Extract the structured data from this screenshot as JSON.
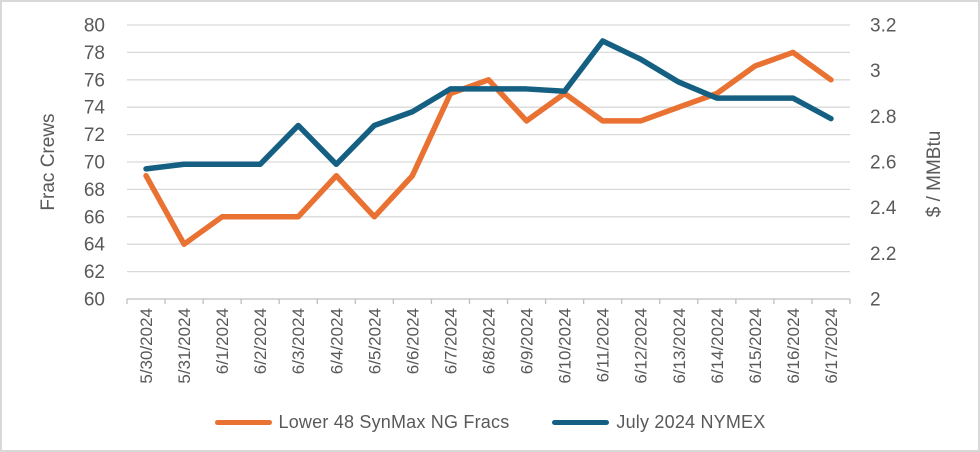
{
  "chart_data": {
    "type": "line",
    "title": "",
    "categories": [
      "5/30/2024",
      "5/31/2024",
      "6/1/2024",
      "6/2/2024",
      "6/3/2024",
      "6/4/2024",
      "6/5/2024",
      "6/6/2024",
      "6/7/2024",
      "6/8/2024",
      "6/9/2024",
      "6/10/2024",
      "6/11/2024",
      "6/12/2024",
      "6/13/2024",
      "6/14/2024",
      "6/15/2024",
      "6/16/2024",
      "6/17/2024"
    ],
    "series": [
      {
        "name": "Lower 48 SynMax NG Fracs",
        "axis": "left",
        "color": "#E97132",
        "values": [
          69,
          64,
          66,
          66,
          66,
          69,
          66,
          69,
          75,
          76,
          73,
          75,
          73,
          73,
          74,
          75,
          77,
          78,
          76
        ]
      },
      {
        "name": "July 2024 NYMEX",
        "axis": "right",
        "color": "#156082",
        "values": [
          2.57,
          2.59,
          2.59,
          2.59,
          2.76,
          2.59,
          2.76,
          2.82,
          2.92,
          2.92,
          2.92,
          2.91,
          3.13,
          3.05,
          2.95,
          2.88,
          2.88,
          2.88,
          2.79
        ]
      }
    ],
    "left_axis": {
      "title": "Frac Crews",
      "min": 60,
      "max": 80,
      "step": 2,
      "tick_labels": [
        "80",
        "78",
        "76",
        "74",
        "72",
        "70",
        "68",
        "66",
        "64",
        "62",
        "60"
      ]
    },
    "right_axis": {
      "title": "$ / MMBtu",
      "min": 2,
      "max": 3.2,
      "step": 0.2,
      "tick_labels": [
        "3.2",
        "3",
        "2.8",
        "2.6",
        "2.4",
        "2.2",
        "2"
      ]
    },
    "grid": true,
    "legend_position": "bottom"
  },
  "colors": {
    "series_fracs": "#E97132",
    "series_nymex": "#156082",
    "gridline": "#D9D9D9",
    "axis_line": "#BFBFBF",
    "text": "#595959",
    "background": "#FFFFFF",
    "frame_border": "#D8D8D8"
  }
}
